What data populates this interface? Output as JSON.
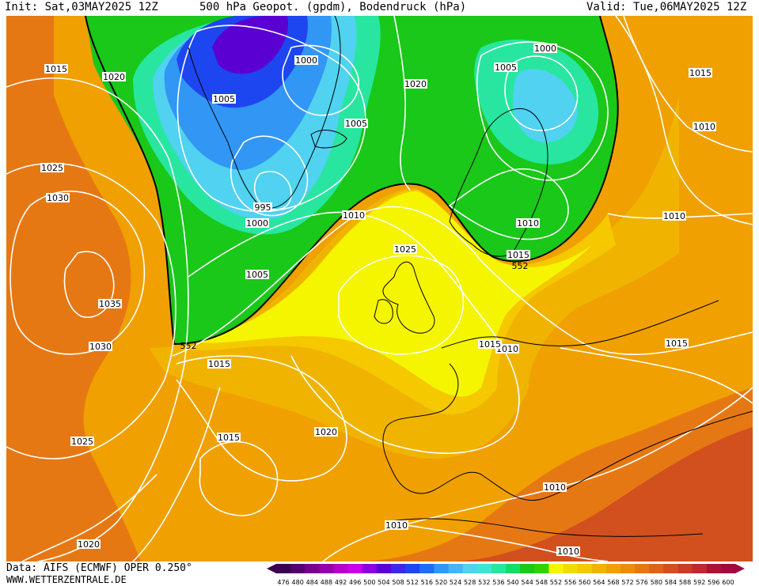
{
  "header": {
    "init": "Init: Sat,03MAY2025 12Z",
    "title": "500 hPa Geopot. (gpdm), Bodendruck (hPa)",
    "valid": "Valid: Tue,06MAY2025 12Z"
  },
  "footer": {
    "source": "Data: AIFS (ECMWF) OPER 0.250°",
    "website": "WWW.WETTERZENTRALE.DE"
  },
  "colors": {
    "green_zone": "#19c819",
    "yellow_zone": "#f5f500",
    "orange_zone": "#f0a000",
    "deep_orange": "#e67814",
    "red_zone": "#d24628",
    "isobar": "#ffffff",
    "coast": "#000000"
  },
  "legend": {
    "values": [
      "476",
      "480",
      "484",
      "488",
      "492",
      "496",
      "500",
      "504",
      "508",
      "512",
      "516",
      "520",
      "524",
      "528",
      "532",
      "536",
      "540",
      "544",
      "548",
      "552",
      "556",
      "560",
      "564",
      "568",
      "572",
      "576",
      "580",
      "584",
      "588",
      "592",
      "596",
      "600"
    ],
    "colors": [
      "#3c0050",
      "#55006e",
      "#78008c",
      "#9600aa",
      "#b400c8",
      "#c800e6",
      "#8c00dc",
      "#5a00d2",
      "#3c28e6",
      "#1e46f0",
      "#1e6ef5",
      "#3296f5",
      "#46b4f5",
      "#50d2f0",
      "#3ce6d2",
      "#28e6a0",
      "#14dc64",
      "#19c819",
      "#32d200",
      "#f5f500",
      "#f0dc00",
      "#f5c800",
      "#f0b400",
      "#f0a000",
      "#eb8c0a",
      "#e67814",
      "#dc6419",
      "#d2501e",
      "#c83c28",
      "#be2832",
      "#aa1432",
      "#a00a3c"
    ]
  },
  "map_labels": {
    "p995": "995",
    "p1000": "1000",
    "p1005": "1005",
    "p1010": "1010",
    "p1015": "1015",
    "p1020": "1020",
    "p1025": "1025",
    "p1030": "1030",
    "p1035": "1035",
    "g552": "552"
  }
}
